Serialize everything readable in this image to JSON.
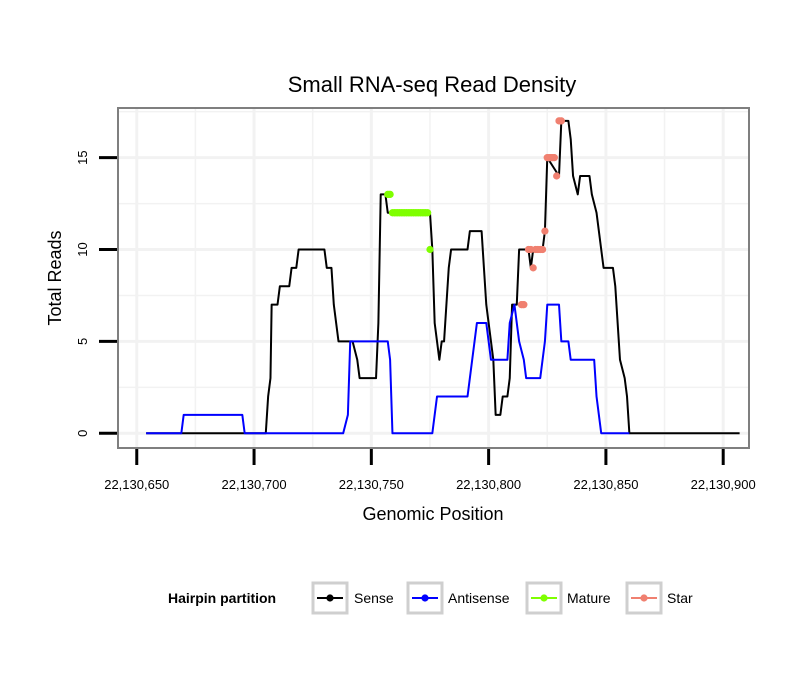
{
  "chart_data": {
    "type": "line",
    "title": "Small RNA-seq Read Density",
    "xlabel": "Genomic Position",
    "ylabel": "Total Reads",
    "xlim": [
      22130642,
      22130911
    ],
    "ylim": [
      -0.8,
      17.7
    ],
    "x_ticks": [
      22130650,
      22130700,
      22130750,
      22130800,
      22130850,
      22130900
    ],
    "x_tick_labels": [
      "22,130,650",
      "22,130,700",
      "22,130,750",
      "22,130,800",
      "22,130,850",
      "22,130,900"
    ],
    "y_ticks": [
      0,
      5,
      10,
      15
    ],
    "y_tick_labels": [
      "0",
      "5",
      "10",
      "15"
    ],
    "grid": true,
    "colors": {
      "sense": "#000000",
      "antisense": "#0000ff",
      "mature": "#7fff00",
      "star": "#f08070",
      "panel_border": "#7f7f7f",
      "grid": "#f2f2f2"
    },
    "legend": {
      "title": "Hairpin partition",
      "position": "bottom",
      "entries": [
        "Sense",
        "Antisense",
        "Mature",
        "Star"
      ]
    },
    "series": [
      {
        "name": "Sense",
        "points": [
          [
            22130654,
            0
          ],
          [
            22130705,
            0
          ],
          [
            22130706,
            2
          ],
          [
            22130707,
            3
          ],
          [
            22130707.5,
            7
          ],
          [
            22130710,
            7
          ],
          [
            22130711,
            8
          ],
          [
            22130715,
            8
          ],
          [
            22130716,
            9
          ],
          [
            22130718,
            9
          ],
          [
            22130719,
            10
          ],
          [
            22130730,
            10
          ],
          [
            22130731,
            9
          ],
          [
            22130733,
            9
          ],
          [
            22130734,
            7
          ],
          [
            22130735,
            6
          ],
          [
            22130736,
            5
          ],
          [
            22130740,
            5
          ],
          [
            22130742,
            5
          ],
          [
            22130744,
            4
          ],
          [
            22130745,
            3
          ],
          [
            22130752,
            3
          ],
          [
            22130753,
            6
          ],
          [
            22130754,
            13
          ],
          [
            22130756,
            13
          ],
          [
            22130757,
            12
          ],
          [
            22130775,
            12
          ],
          [
            22130776,
            10
          ],
          [
            22130777,
            6
          ],
          [
            22130778,
            5
          ],
          [
            22130779,
            4
          ],
          [
            22130780,
            5
          ],
          [
            22130781,
            5
          ],
          [
            22130782,
            7
          ],
          [
            22130783,
            9
          ],
          [
            22130784,
            10
          ],
          [
            22130791,
            10
          ],
          [
            22130792,
            11
          ],
          [
            22130797,
            11
          ],
          [
            22130798,
            9
          ],
          [
            22130799,
            7
          ],
          [
            22130800,
            6
          ],
          [
            22130801,
            5
          ],
          [
            22130802,
            4
          ],
          [
            22130803,
            1
          ],
          [
            22130805,
            1
          ],
          [
            22130806,
            2
          ],
          [
            22130808,
            2
          ],
          [
            22130809,
            3
          ],
          [
            22130810,
            7
          ],
          [
            22130812,
            7
          ],
          [
            22130813,
            10
          ],
          [
            22130817,
            10
          ],
          [
            22130818,
            9
          ],
          [
            22130819,
            10
          ],
          [
            22130823,
            10
          ],
          [
            22130824,
            11
          ],
          [
            22130825,
            15
          ],
          [
            22130830,
            14
          ],
          [
            22130831,
            17
          ],
          [
            22130834,
            17
          ],
          [
            22130835,
            16
          ],
          [
            22130836,
            14
          ],
          [
            22130838,
            13
          ],
          [
            22130839,
            14
          ],
          [
            22130843,
            14
          ],
          [
            22130844,
            13
          ],
          [
            22130846,
            12
          ],
          [
            22130849,
            9
          ],
          [
            22130853,
            9
          ],
          [
            22130854,
            8
          ],
          [
            22130856,
            4
          ],
          [
            22130858,
            3
          ],
          [
            22130859,
            2
          ],
          [
            22130860,
            0
          ],
          [
            22130907,
            0
          ]
        ]
      },
      {
        "name": "Antisense",
        "points": [
          [
            22130654,
            0
          ],
          [
            22130669,
            0
          ],
          [
            22130670,
            1
          ],
          [
            22130695,
            1
          ],
          [
            22130696,
            0
          ],
          [
            22130738,
            0
          ],
          [
            22130740,
            1
          ],
          [
            22130741,
            5
          ],
          [
            22130742,
            5
          ],
          [
            22130756,
            5
          ],
          [
            22130757,
            5
          ],
          [
            22130758,
            4
          ],
          [
            22130759,
            0
          ],
          [
            22130776,
            0
          ],
          [
            22130778,
            2
          ],
          [
            22130791,
            2
          ],
          [
            22130793,
            4
          ],
          [
            22130794,
            5
          ],
          [
            22130795,
            6
          ],
          [
            22130799,
            6
          ],
          [
            22130800,
            5
          ],
          [
            22130801,
            4
          ],
          [
            22130808,
            4
          ],
          [
            22130809,
            6
          ],
          [
            22130811,
            7
          ],
          [
            22130813,
            5
          ],
          [
            22130815,
            4
          ],
          [
            22130816,
            3
          ],
          [
            22130822,
            3
          ],
          [
            22130823,
            4
          ],
          [
            22130824,
            5
          ],
          [
            22130825,
            7
          ],
          [
            22130830,
            7
          ],
          [
            22130831,
            5
          ],
          [
            22130834,
            5
          ],
          [
            22130835,
            4
          ],
          [
            22130845,
            4
          ],
          [
            22130846,
            2
          ],
          [
            22130847,
            1
          ],
          [
            22130848,
            0
          ],
          [
            22130860,
            0
          ]
        ]
      },
      {
        "name": "Mature",
        "points": [
          [
            22130757,
            13
          ],
          [
            22130758,
            13
          ],
          [
            22130759,
            12
          ],
          [
            22130760,
            12
          ],
          [
            22130761,
            12
          ],
          [
            22130762,
            12
          ],
          [
            22130763,
            12
          ],
          [
            22130764,
            12
          ],
          [
            22130765,
            12
          ],
          [
            22130766,
            12
          ],
          [
            22130767,
            12
          ],
          [
            22130768,
            12
          ],
          [
            22130769,
            12
          ],
          [
            22130770,
            12
          ],
          [
            22130771,
            12
          ],
          [
            22130772,
            12
          ],
          [
            22130773,
            12
          ],
          [
            22130774,
            12
          ],
          [
            22130775,
            10
          ]
        ]
      },
      {
        "name": "Star",
        "points": [
          [
            22130814,
            7
          ],
          [
            22130815,
            7
          ],
          [
            22130817,
            10
          ],
          [
            22130818,
            10
          ],
          [
            22130819,
            9
          ],
          [
            22130820,
            10
          ],
          [
            22130821,
            10
          ],
          [
            22130822,
            10
          ],
          [
            22130823,
            10
          ],
          [
            22130824,
            11
          ],
          [
            22130825,
            15
          ],
          [
            22130826,
            15
          ],
          [
            22130827,
            15
          ],
          [
            22130828,
            15
          ],
          [
            22130829,
            14
          ],
          [
            22130830,
            17
          ],
          [
            22130831,
            17
          ]
        ]
      }
    ]
  }
}
